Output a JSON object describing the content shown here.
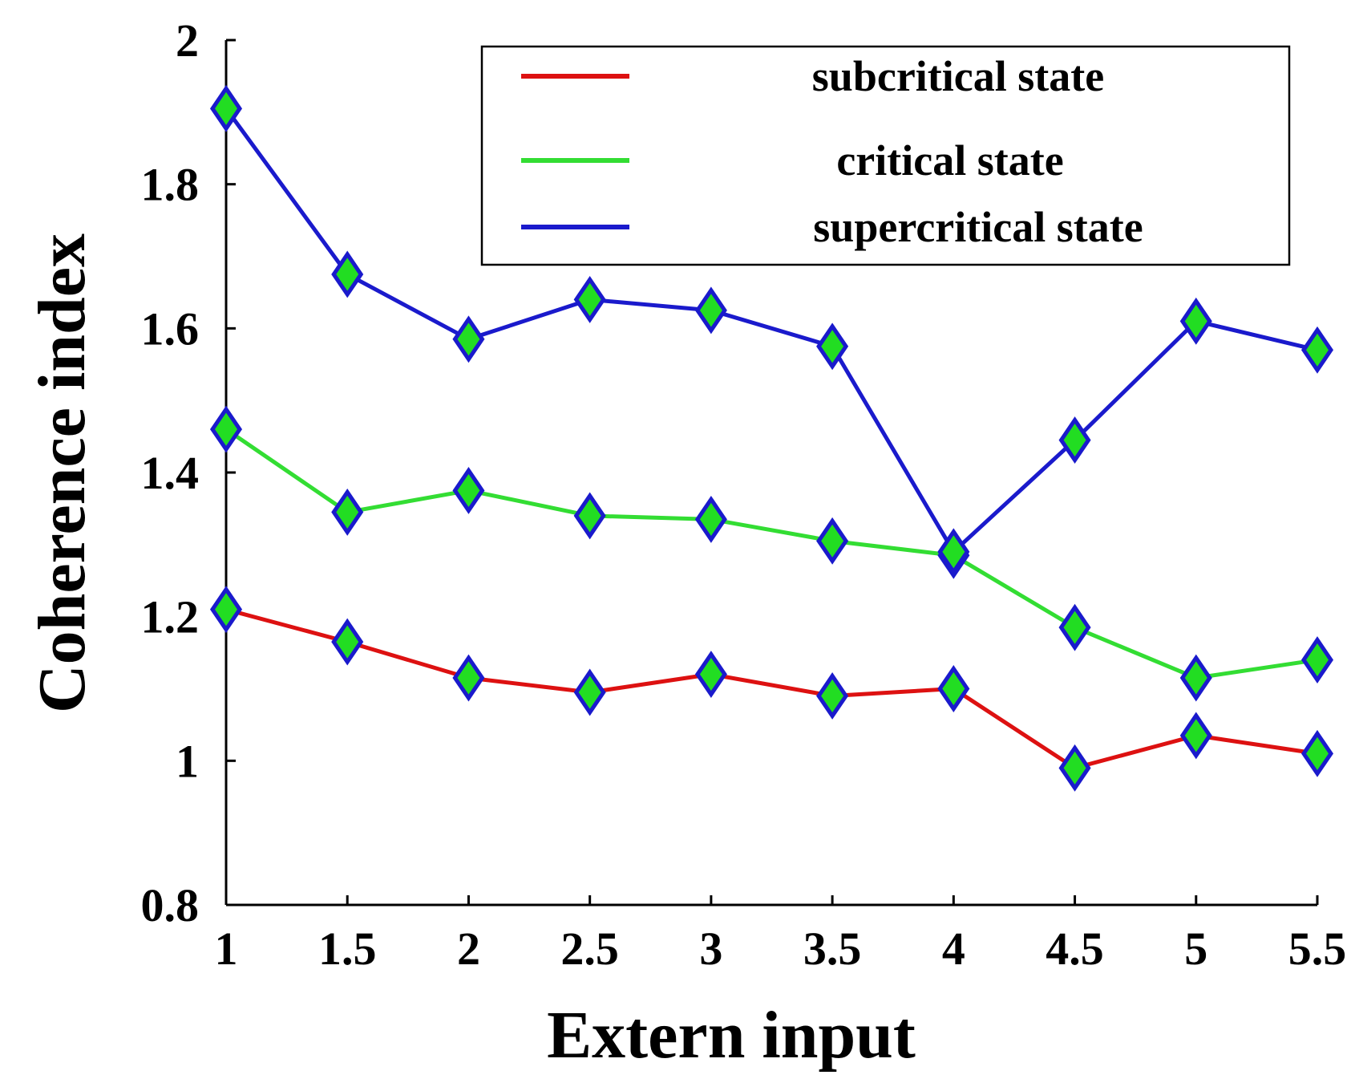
{
  "chart_data": {
    "type": "line",
    "title": "",
    "xlabel": "Extern input",
    "ylabel": "Coherence index",
    "x": [
      1,
      1.5,
      2,
      2.5,
      3,
      3.5,
      4,
      4.5,
      5,
      5.5
    ],
    "x_tick_labels": [
      "1",
      "1.5",
      "2",
      "2.5",
      "3",
      "3.5",
      "4",
      "4.5",
      "5",
      "5.5"
    ],
    "y_ticks": [
      0.8,
      1,
      1.2,
      1.4,
      1.6,
      1.8,
      2
    ],
    "y_tick_labels": [
      "0.8",
      "1",
      "1.2",
      "1.4",
      "1.6",
      "1.8",
      "2"
    ],
    "xlim": [
      1,
      5.5
    ],
    "ylim": [
      0.8,
      2.0
    ],
    "grid": false,
    "legend_position": "top-right",
    "marker": {
      "shape": "diamond",
      "fill": "#22dd22",
      "edge": "#1a1acc"
    },
    "series": [
      {
        "name": "subcritical state",
        "color": "#dd1111",
        "values": [
          1.21,
          1.165,
          1.115,
          1.095,
          1.12,
          1.09,
          1.1,
          0.99,
          1.035,
          1.01
        ]
      },
      {
        "name": "critical state",
        "color": "#33dd33",
        "values": [
          1.46,
          1.345,
          1.375,
          1.34,
          1.335,
          1.305,
          1.285,
          1.185,
          1.115,
          1.14
        ]
      },
      {
        "name": "supercritical state",
        "color": "#1a1acc",
        "values": [
          1.905,
          1.675,
          1.585,
          1.64,
          1.625,
          1.575,
          1.29,
          1.445,
          1.61,
          1.57
        ]
      }
    ]
  }
}
